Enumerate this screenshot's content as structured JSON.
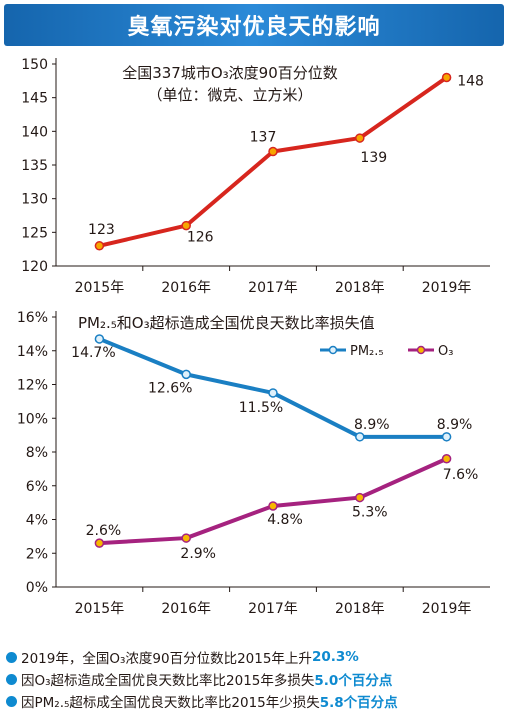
{
  "header": {
    "title": "臭氧污染对优良天的影响"
  },
  "chart_data": [
    {
      "type": "line",
      "title": "全国337城市O₃浓度90百分位数",
      "subtitle": "（单位：微克、立方米）",
      "categories": [
        "2015年",
        "2016年",
        "2017年",
        "2018年",
        "2019年"
      ],
      "series": [
        {
          "values": [
            123,
            126,
            137,
            139,
            148
          ],
          "labels": [
            "123",
            "126",
            "137",
            "139",
            "148"
          ]
        }
      ],
      "ylim": [
        120,
        150
      ],
      "yticks": [
        120,
        125,
        130,
        135,
        140,
        145,
        150
      ],
      "ytick_labels": [
        "120",
        "125",
        "130",
        "135",
        "140",
        "145",
        "150"
      ],
      "grid": false,
      "colors": {
        "line": "#d7261e",
        "marker": "#f7a600"
      }
    },
    {
      "type": "line",
      "title": "PM₂.₅和O₃超标造成全国优良天数比率损失值",
      "categories": [
        "2015年",
        "2016年",
        "2017年",
        "2018年",
        "2019年"
      ],
      "series": [
        {
          "name": "PM₂.₅",
          "values": [
            14.7,
            12.6,
            11.5,
            8.9,
            8.9
          ],
          "labels": [
            "14.7%",
            "12.6%",
            "11.5%",
            "8.9%",
            "8.9%"
          ],
          "color": "#1a7fc3",
          "marker": "#dff1fb"
        },
        {
          "name": "O₃",
          "values": [
            2.6,
            2.9,
            4.8,
            5.3,
            7.6
          ],
          "labels": [
            "2.6%",
            "2.9%",
            "4.8%",
            "5.3%",
            "7.6%"
          ],
          "color": "#a5227f",
          "marker": "#f7b800"
        }
      ],
      "ylim": [
        0,
        16
      ],
      "yticks": [
        0,
        2,
        4,
        6,
        8,
        10,
        12,
        14,
        16
      ],
      "ytick_labels": [
        "0%",
        "2%",
        "4%",
        "6%",
        "8%",
        "10%",
        "12%",
        "14%",
        "16%"
      ],
      "legend": "top-right",
      "grid": false
    }
  ],
  "notes": [
    {
      "text": "2019年，全国O₃浓度90百分位数比2015年上升",
      "highlight": "20.3%"
    },
    {
      "text": "因O₃超标造成全国优良天数比率比2015年多损失",
      "highlight": "5.0个百分点"
    },
    {
      "text": "因PM₂.₅超标成全国优良天数比率比2015年少损失",
      "highlight": "5.8个百分点"
    }
  ],
  "colors": {
    "accent": "#0e8ad0",
    "banner": "#1a74c2"
  }
}
